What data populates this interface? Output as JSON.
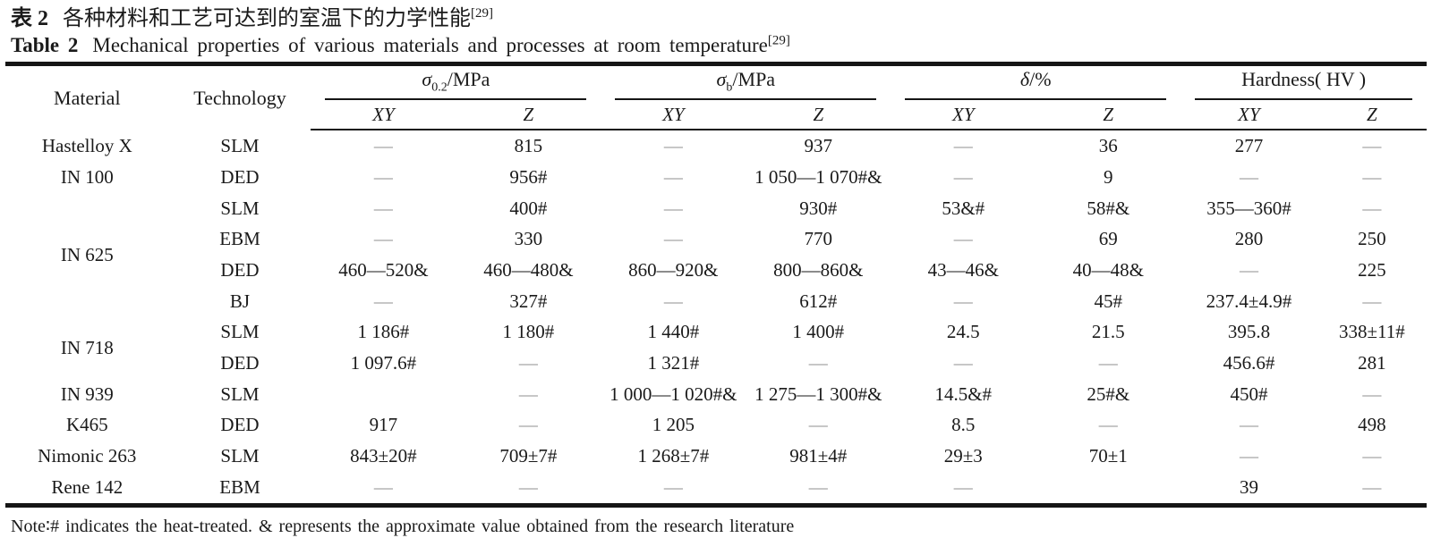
{
  "title_cn": {
    "label": "表 2",
    "text": "各种材料和工艺可达到的室温下的力学性能",
    "ref": "[29]"
  },
  "title_en": {
    "label": "Table 2",
    "text": "Mechanical properties of various materials and processes at room temperature",
    "ref": "[29]"
  },
  "table": {
    "corner_headers": {
      "material": "Material",
      "technology": "Technology"
    },
    "groups": [
      {
        "sym": "σ",
        "sub": "0.2",
        "rest": "/MPa"
      },
      {
        "sym": "σ",
        "sub": "b",
        "rest": "/MPa"
      },
      {
        "sym": "δ",
        "sub": "",
        "rest": "/%"
      },
      {
        "sym": "",
        "sub": "",
        "rest": "Hardness( HV )"
      }
    ],
    "subcol_labels": [
      "XY",
      "Z"
    ],
    "rows": [
      {
        "material": "Hastelloy X",
        "material_rowspan": 1,
        "tech": "SLM",
        "cells": [
          "—",
          "815",
          "—",
          "937",
          "—",
          "36",
          "277",
          "—"
        ]
      },
      {
        "material": "IN 100",
        "material_rowspan": 1,
        "tech": "DED",
        "cells": [
          "—",
          "956#",
          "—",
          "1 050—1 070#&",
          "—",
          "9",
          "—",
          "—"
        ]
      },
      {
        "material": "IN 625",
        "material_rowspan": 4,
        "tech": "SLM",
        "cells": [
          "—",
          "400#",
          "—",
          "930#",
          "53&#",
          "58#&",
          "355—360#",
          "—"
        ]
      },
      {
        "material": null,
        "tech": "EBM",
        "cells": [
          "—",
          "330",
          "—",
          "770",
          "—",
          "69",
          "280",
          "250"
        ]
      },
      {
        "material": null,
        "tech": "DED",
        "cells": [
          "460—520&",
          "460—480&",
          "860—920&",
          "800—860&",
          "43—46&",
          "40—48&",
          "—",
          "225"
        ]
      },
      {
        "material": null,
        "tech": "BJ",
        "cells": [
          "—",
          "327#",
          "—",
          "612#",
          "—",
          "45#",
          "237.4±4.9#",
          "—"
        ]
      },
      {
        "material": "IN 718",
        "material_rowspan": 2,
        "tech": "SLM",
        "cells": [
          "1 186#",
          "1 180#",
          "1 440#",
          "1 400#",
          "24.5",
          "21.5",
          "395.8",
          "338±11#"
        ]
      },
      {
        "material": null,
        "tech": "DED",
        "cells": [
          "1 097.6#",
          "—",
          "1 321#",
          "—",
          "—",
          "—",
          "456.6#",
          "281"
        ]
      },
      {
        "material": "IN 939",
        "material_rowspan": 1,
        "tech": "SLM",
        "cells": [
          "",
          "—",
          "1 000—1 020#&",
          "1 275—1 300#&",
          "14.5&#",
          "25#&",
          "450#",
          "—"
        ]
      },
      {
        "material": "K465",
        "material_rowspan": 1,
        "tech": "DED",
        "cells": [
          "917",
          "—",
          "1 205",
          "—",
          "8.5",
          "—",
          "—",
          "498"
        ]
      },
      {
        "material": "Nimonic 263",
        "material_rowspan": 1,
        "tech": "SLM",
        "cells": [
          "843±20#",
          "709±7#",
          "1 268±7#",
          "981±4#",
          "29±3",
          "70±1",
          "—",
          "—"
        ]
      },
      {
        "material": "Rene 142",
        "material_rowspan": 1,
        "tech": "EBM",
        "cells": [
          "—",
          "—",
          "—",
          "—",
          "—",
          "",
          "39",
          "—"
        ]
      }
    ]
  },
  "note": "Note∶# indicates the heat-treated. & represents the approximate value obtained from the research literature",
  "colors": {
    "rule": "#151515",
    "text": "#1a1a1a",
    "dash": "#8f8f8f"
  }
}
